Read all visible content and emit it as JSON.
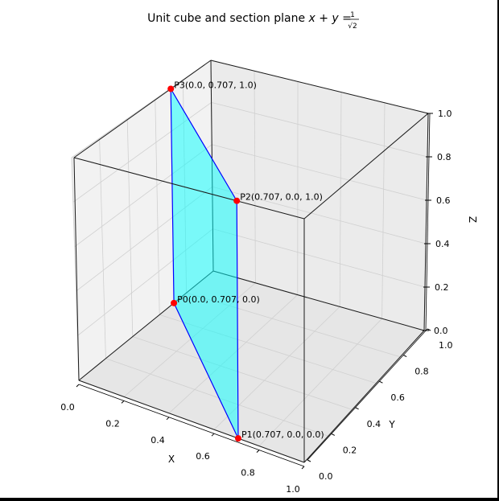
{
  "chart_data": {
    "type": "3d-line",
    "title": {
      "prefix": "Unit cube and section plane ",
      "math_lhs": "x + y =",
      "frac_num": "1",
      "frac_den": "√2"
    },
    "xlabel": "X",
    "ylabel": "Y",
    "zlabel": "Z",
    "xlim": [
      0,
      1
    ],
    "ylim": [
      0,
      1
    ],
    "zlim": [
      0,
      1
    ],
    "grid": true,
    "ticks": {
      "x": [
        {
          "v": 0.0,
          "label": "0.0"
        },
        {
          "v": 0.2,
          "label": "0.2"
        },
        {
          "v": 0.4,
          "label": "0.4"
        },
        {
          "v": 0.6,
          "label": "0.6"
        },
        {
          "v": 0.8,
          "label": "0.8"
        },
        {
          "v": 1.0,
          "label": "1.0"
        }
      ],
      "y": [
        {
          "v": 0.0,
          "label": "0.0"
        },
        {
          "v": 0.2,
          "label": "0.2"
        },
        {
          "v": 0.4,
          "label": "0.4"
        },
        {
          "v": 0.6,
          "label": "0.6"
        },
        {
          "v": 0.8,
          "label": "0.8"
        },
        {
          "v": 1.0,
          "label": "1.0"
        }
      ],
      "z": [
        {
          "v": 0.0,
          "label": "0.0"
        },
        {
          "v": 0.2,
          "label": "0.2"
        },
        {
          "v": 0.4,
          "label": "0.4"
        },
        {
          "v": 0.6,
          "label": "0.6"
        },
        {
          "v": 0.8,
          "label": "0.8"
        },
        {
          "v": 1.0,
          "label": "1.0"
        }
      ]
    },
    "cube": {
      "min": 0,
      "max": 1
    },
    "section_polygon": {
      "order": [
        1,
        0,
        3,
        2
      ],
      "fill": "#00ffff",
      "edge": "#0000ff"
    },
    "points": [
      {
        "name": "P0",
        "x": 0.0,
        "y": 0.707,
        "z": 0.0,
        "label": "P0(0.0, 0.707, 0.0)"
      },
      {
        "name": "P1",
        "x": 0.707,
        "y": 0.0,
        "z": 0.0,
        "label": "P1(0.707, 0.0, 0.0)"
      },
      {
        "name": "P2",
        "x": 0.707,
        "y": 0.0,
        "z": 1.0,
        "label": "P2(0.707, 0.0, 1.0)"
      },
      {
        "name": "P3",
        "x": 0.0,
        "y": 0.707,
        "z": 1.0,
        "label": "P3(0.0, 0.707, 1.0)"
      }
    ],
    "marker_color": "#ff0000"
  }
}
